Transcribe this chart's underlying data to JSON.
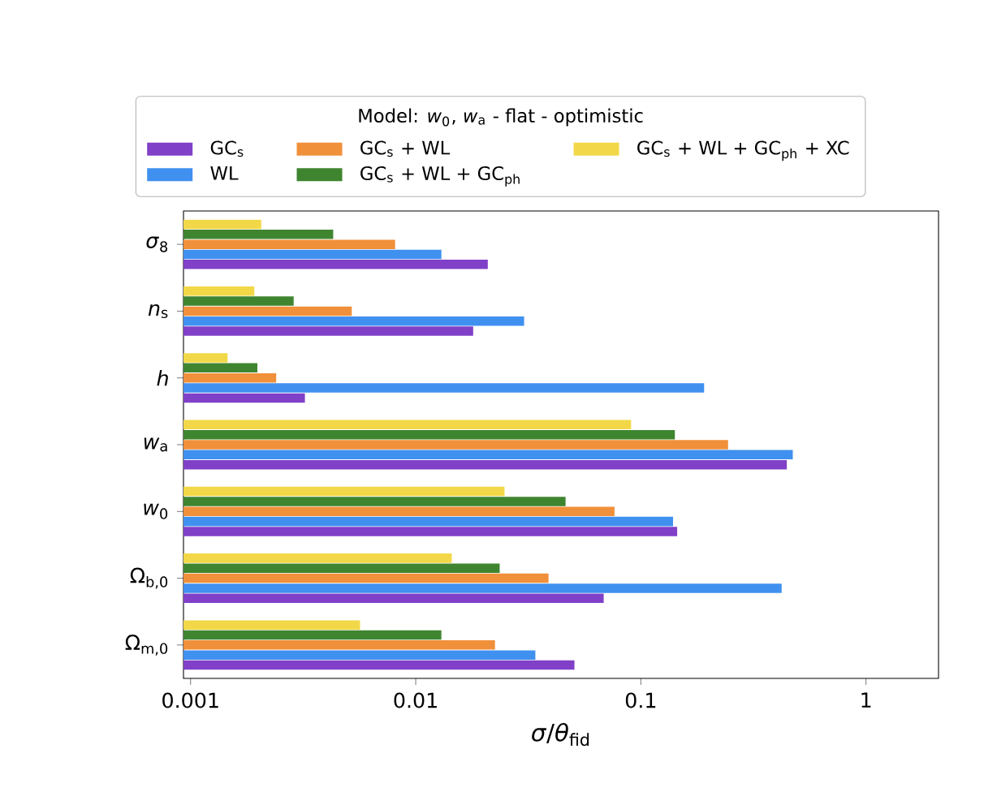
{
  "chart_data": {
    "type": "bar",
    "orientation": "horizontal",
    "log": "x",
    "legend": "top",
    "grid": false,
    "legend_title": "Model: *w*$_{0}$, *w*$_{a}$ - flat - optimistic",
    "xlabel": "*σ*/*θ*$_{fid}$",
    "categories": [
      "*σ*$_{8}$",
      "*n*$_{s}$",
      "*h*",
      "*w*$_{a}$",
      "*w*$_{0}$",
      "Ω$_{b,0}$",
      "Ω$_{m,0}$"
    ],
    "xlim": [
      0.00093,
      2.1
    ],
    "xticks": [
      0.001,
      0.01,
      0.1,
      1
    ],
    "series": [
      {
        "name": "GC$_{s}$",
        "color": "#8040c8",
        "values": [
          0.0209,
          0.018,
          0.00322,
          0.445,
          0.145,
          0.0684,
          0.0507
        ]
      },
      {
        "name": "WL",
        "color": "#4090f0",
        "values": [
          0.013,
          0.0303,
          0.191,
          0.473,
          0.139,
          0.422,
          0.034
        ]
      },
      {
        "name": "GC$_{s}$ + WL",
        "color": "#f0903a",
        "values": [
          0.0081,
          0.0052,
          0.0024,
          0.244,
          0.0764,
          0.0389,
          0.0225
        ]
      },
      {
        "name": "GC$_{s}$ + WL + GC$_{ph}$",
        "color": "#3f8530",
        "values": [
          0.0043,
          0.00287,
          0.00198,
          0.1416,
          0.0463,
          0.0236,
          0.013
        ]
      },
      {
        "name": "GC$_{s}$ + WL + GC$_{ph}$ + XC",
        "color": "#f2d848",
        "values": [
          0.00206,
          0.00192,
          0.00146,
          0.0905,
          0.0248,
          0.01445,
          0.00566
        ]
      }
    ]
  }
}
